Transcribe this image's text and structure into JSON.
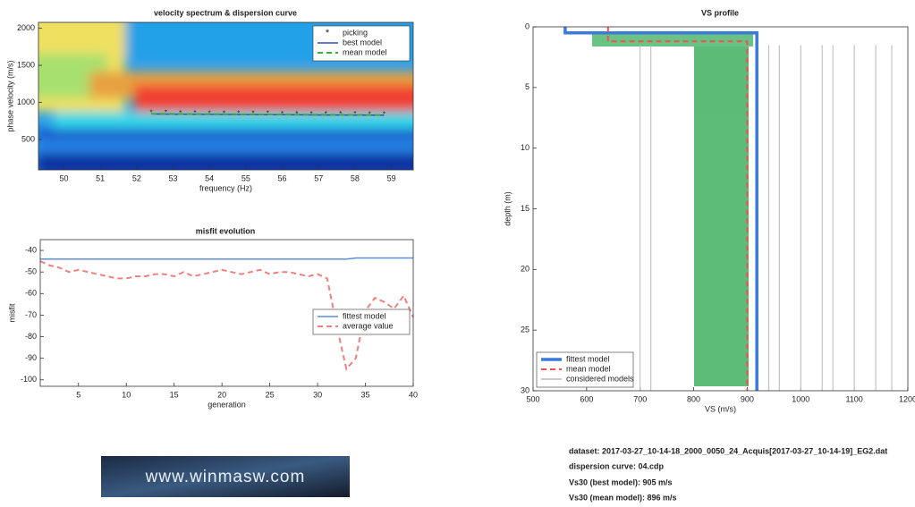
{
  "chart_data": [
    {
      "type": "line",
      "title": "velocity spectrum & dispersion curve",
      "xlabel": "frequency (Hz)",
      "ylabel": "phase velocity (m/s)",
      "x": [
        52.4,
        52.8,
        53.2,
        53.6,
        54.0,
        54.4,
        54.8,
        55.2,
        55.6,
        56.0,
        56.4,
        56.8,
        57.2,
        57.6,
        58.0,
        58.4,
        58.8
      ],
      "series": [
        {
          "name": "picking",
          "color": "#e040e0",
          "style": "marker",
          "values": [
            860,
            855,
            850,
            850,
            848,
            848,
            845,
            845,
            843,
            842,
            842,
            840,
            840,
            838,
            838,
            836,
            835
          ]
        },
        {
          "name": "best model",
          "color": "#3050c0",
          "style": "solid",
          "values": [
            845,
            843,
            841,
            840,
            839,
            838,
            837,
            836,
            835,
            834,
            833,
            832,
            831,
            830,
            829,
            828,
            827
          ]
        },
        {
          "name": "mean model",
          "color": "#30b040",
          "style": "dashed",
          "values": [
            848,
            846,
            844,
            843,
            842,
            841,
            840,
            839,
            838,
            837,
            836,
            835,
            834,
            833,
            832,
            831,
            830
          ]
        }
      ],
      "xlim": [
        49.3,
        59.6
      ],
      "ylim": [
        90,
        2080
      ],
      "xticks": [
        50,
        51,
        52,
        53,
        54,
        55,
        56,
        57,
        58,
        59
      ],
      "yticks": [
        500,
        1000,
        1500,
        2000
      ],
      "legend": "upper right"
    },
    {
      "type": "line",
      "title": "misfit evolution",
      "xlabel": "generation",
      "ylabel": "misfit",
      "x": [
        1,
        2,
        3,
        4,
        5,
        6,
        7,
        8,
        9,
        10,
        11,
        12,
        13,
        14,
        15,
        16,
        17,
        18,
        19,
        20,
        21,
        22,
        23,
        24,
        25,
        26,
        27,
        28,
        29,
        30,
        31,
        32,
        33,
        34,
        35,
        36,
        37,
        38,
        39,
        40
      ],
      "series": [
        {
          "name": "fittest model",
          "color": "#5b8fd6",
          "style": "solid",
          "values": [
            -44,
            -44,
            -44,
            -44,
            -44,
            -44,
            -44,
            -44,
            -44,
            -44,
            -44,
            -44,
            -44,
            -44,
            -44,
            -44,
            -44,
            -44,
            -44,
            -44,
            -44,
            -44,
            -44,
            -44,
            -44,
            -44,
            -44,
            -44,
            -44,
            -44,
            -44,
            -44,
            -44,
            -43.5,
            -43.5,
            -43.5,
            -43.5,
            -43.5,
            -43.5,
            -43.5
          ]
        },
        {
          "name": "average value",
          "color": "#f08080",
          "style": "dashed",
          "values": [
            -45,
            -47,
            -48,
            -50,
            -49,
            -50,
            -51,
            -52,
            -53,
            -53,
            -52,
            -52,
            -51,
            -51,
            -52,
            -50,
            -52,
            -51,
            -50,
            -49,
            -50,
            -51,
            -50,
            -49,
            -51,
            -50,
            -50,
            -51,
            -52,
            -51,
            -53,
            -75,
            -95,
            -90,
            -68,
            -62,
            -64,
            -67,
            -61,
            -71
          ]
        }
      ],
      "xlim": [
        1,
        40
      ],
      "ylim": [
        -103,
        -35
      ],
      "xticks": [
        5,
        10,
        15,
        20,
        25,
        30,
        35,
        40
      ],
      "yticks": [
        -40,
        -50,
        -60,
        -70,
        -80,
        -90,
        -100
      ],
      "legend": "center right"
    },
    {
      "type": "line",
      "title": "VS profile",
      "xlabel": "VS (m/s)",
      "ylabel": "depth (m)",
      "yaxis_inverted": true,
      "series": [
        {
          "name": "fittest model",
          "color": "#3a7ad8",
          "style": "thick",
          "x": [
            560,
            560,
            918,
            918
          ],
          "values": [
            0,
            0.5,
            0.5,
            30
          ]
        },
        {
          "name": "mean model",
          "color": "#f05050",
          "style": "dashed",
          "x": [
            640,
            640,
            900,
            900
          ],
          "values": [
            0,
            1.2,
            1.2,
            30
          ]
        },
        {
          "name": "considered models",
          "color": "#b8b8b8",
          "style": "thin",
          "x": [
            700,
            700,
            null,
            720,
            720,
            null,
            940,
            940,
            null,
            960,
            960,
            null,
            1000,
            1000,
            null,
            1040,
            1040,
            null,
            1060,
            1060,
            null,
            1100,
            1100,
            null,
            1140,
            1140,
            null,
            1170,
            1170
          ],
          "values": [
            1.5,
            30,
            null,
            1.5,
            30,
            null,
            1.5,
            30,
            null,
            1.5,
            30,
            null,
            1.5,
            30,
            null,
            1.5,
            30,
            null,
            1.5,
            30,
            null,
            1.5,
            30,
            null,
            1.5,
            30,
            null,
            1.5,
            30
          ]
        }
      ],
      "xlim": [
        500,
        1200
      ],
      "ylim": [
        0,
        30
      ],
      "xticks": [
        500,
        600,
        700,
        800,
        900,
        1000,
        1100,
        1200
      ],
      "yticks": [
        0,
        5,
        10,
        15,
        20,
        25,
        30
      ],
      "legend": "lower left"
    }
  ],
  "info": [
    "dataset: 2017-03-27_10-14-18_2000_0050_24_Acquis[2017-03-27_10-14-19]_EG2.dat",
    "dispersion curve: 04.cdp",
    "Vs30 (best model): 905 m/s",
    "Vs30 (mean model): 896 m/s"
  ],
  "logo": "www.winmasw.com"
}
